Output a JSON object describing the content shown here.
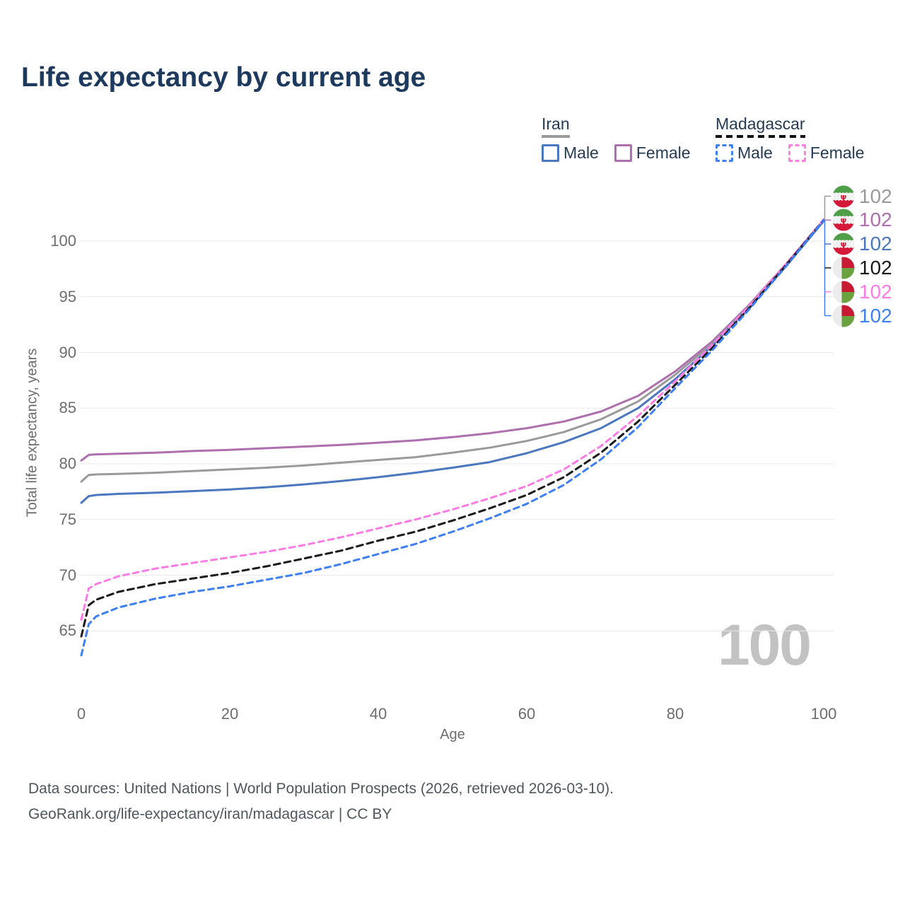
{
  "title": "Life expectancy by current age",
  "watermark": "100",
  "footer": {
    "line1": "Data sources: United Nations | World Population Prospects (2026, retrieved 2026-03-10).",
    "line2": "GeoRank.org/life-expectancy/iran/madagascar | CC BY"
  },
  "legend": {
    "groups": [
      {
        "country": "Iran",
        "line_style": "solid",
        "line_color": "#9a9a9a",
        "items": [
          {
            "label": "Male",
            "box_color": "#4a77bd",
            "box_style": "solid"
          },
          {
            "label": "Female",
            "box_color": "#ad6fad",
            "box_style": "solid"
          }
        ]
      },
      {
        "country": "Madagascar",
        "line_style": "dashed",
        "line_color": "#111111",
        "items": [
          {
            "label": "Male",
            "box_color": "#3e7ff2",
            "box_style": "dashed"
          },
          {
            "label": "Female",
            "box_color": "#fc7ee0",
            "box_style": "dashed"
          }
        ]
      }
    ]
  },
  "chart_data": {
    "type": "line",
    "title": "Life expectancy by current age",
    "xlabel": "Age",
    "ylabel": "Total life expectancy, years",
    "x_ticks": [
      0,
      20,
      40,
      60,
      80,
      100
    ],
    "y_ticks": [
      65,
      70,
      75,
      80,
      85,
      90,
      95,
      100
    ],
    "xlim": [
      0,
      100
    ],
    "ylim": [
      62,
      103.5
    ],
    "grid": "horizontal",
    "legend_position": "top-right",
    "ages": [
      0,
      1,
      2,
      5,
      10,
      15,
      20,
      25,
      30,
      35,
      40,
      45,
      50,
      55,
      60,
      65,
      70,
      75,
      80,
      85,
      90,
      95,
      100
    ],
    "series": [
      {
        "id": "iran-female",
        "country": "Iran",
        "sex": "Female",
        "color": "#ad6fad",
        "dash": "solid",
        "end_label": "102",
        "end_slot": 1,
        "values": [
          80.3,
          80.8,
          80.85,
          80.9,
          81.0,
          81.15,
          81.25,
          81.4,
          81.55,
          81.7,
          81.9,
          82.1,
          82.4,
          82.75,
          83.2,
          83.8,
          84.7,
          86.1,
          88.3,
          91.0,
          94.3,
          98.0,
          101.9
        ]
      },
      {
        "id": "iran-both",
        "country": "Iran",
        "sex": "Both",
        "color": "#9a9a9a",
        "dash": "solid",
        "end_label": "102",
        "end_slot": 0,
        "values": [
          78.4,
          79.0,
          79.05,
          79.1,
          79.2,
          79.35,
          79.5,
          79.65,
          79.85,
          80.1,
          80.35,
          80.6,
          81.0,
          81.45,
          82.05,
          82.85,
          84.0,
          85.6,
          88.0,
          90.8,
          94.2,
          97.9,
          101.85
        ]
      },
      {
        "id": "iran-male",
        "country": "Iran",
        "sex": "Male",
        "color": "#4a77bd",
        "dash": "solid",
        "end_label": "102",
        "end_slot": 2,
        "values": [
          76.5,
          77.1,
          77.2,
          77.3,
          77.4,
          77.55,
          77.7,
          77.9,
          78.15,
          78.45,
          78.8,
          79.2,
          79.65,
          80.15,
          80.95,
          81.95,
          83.2,
          85.0,
          87.6,
          90.6,
          94.1,
          97.8,
          101.8
        ]
      },
      {
        "id": "madagascar-female",
        "country": "Madagascar",
        "sex": "Female",
        "color": "#fb7ce4",
        "dash": "8 6",
        "end_label": "102",
        "end_slot": 4,
        "values": [
          66.0,
          68.8,
          69.2,
          69.9,
          70.6,
          71.1,
          71.6,
          72.1,
          72.7,
          73.4,
          74.2,
          75.0,
          75.9,
          76.9,
          78.0,
          79.5,
          81.6,
          84.3,
          87.4,
          90.7,
          94.2,
          98.0,
          101.95
        ]
      },
      {
        "id": "madagascar-both",
        "country": "Madagascar",
        "sex": "Both",
        "color": "#1a1a1a",
        "dash": "9 6",
        "end_label": "102",
        "end_slot": 3,
        "values": [
          64.5,
          67.3,
          67.8,
          68.5,
          69.2,
          69.7,
          70.2,
          70.8,
          71.5,
          72.2,
          73.1,
          73.9,
          74.9,
          76.0,
          77.2,
          78.8,
          81.0,
          83.8,
          87.1,
          90.4,
          94.0,
          97.9,
          101.9
        ]
      },
      {
        "id": "madagascar-male",
        "country": "Madagascar",
        "sex": "Male",
        "color": "#3e7ff2",
        "dash": "8 6",
        "end_label": "102",
        "end_slot": 5,
        "values": [
          62.8,
          65.6,
          66.3,
          67.1,
          67.9,
          68.5,
          69.0,
          69.6,
          70.2,
          71.0,
          71.9,
          72.8,
          73.9,
          75.1,
          76.4,
          78.1,
          80.4,
          83.3,
          86.8,
          90.2,
          93.9,
          97.8,
          101.9
        ]
      }
    ]
  },
  "end_labels": [
    {
      "value": "102",
      "series": "Iran",
      "flag": "iran",
      "color": "#9a9a9a"
    },
    {
      "value": "102",
      "series": "Iran Female",
      "flag": "iran",
      "color": "#ad6fad"
    },
    {
      "value": "102",
      "series": "Iran Male",
      "flag": "iran",
      "color": "#4a77bd"
    },
    {
      "value": "102",
      "series": "Madagascar",
      "flag": "madagascar",
      "color": "#1a1a1a"
    },
    {
      "value": "102",
      "series": "Madagascar Female",
      "flag": "madagascar",
      "color": "#fb7ce4"
    },
    {
      "value": "102",
      "series": "Madagascar Male",
      "flag": "madagascar",
      "color": "#3e7ff2"
    }
  ]
}
